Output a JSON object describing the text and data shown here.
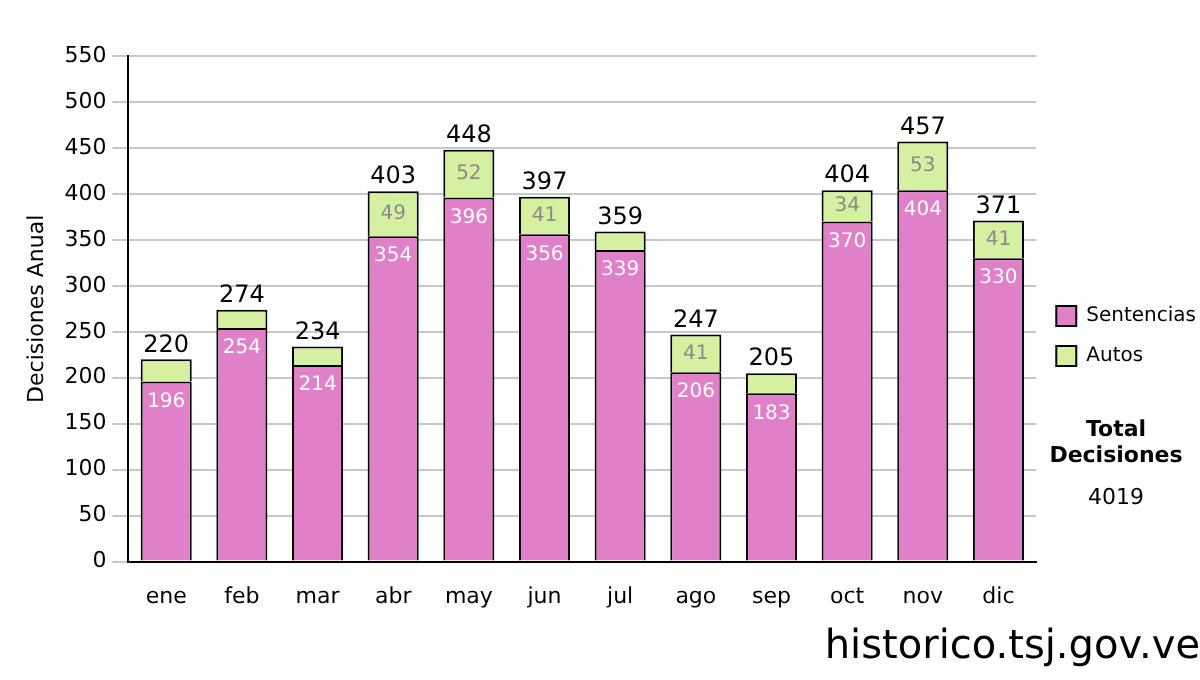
{
  "chart_data": {
    "type": "bar",
    "stacked": true,
    "ylabel": "Decisiones Anual",
    "categories": [
      "ene",
      "feb",
      "mar",
      "abr",
      "may",
      "jun",
      "jul",
      "ago",
      "sep",
      "oct",
      "nov",
      "dic"
    ],
    "series": [
      {
        "name": "Sentencias",
        "color": "#e080c8",
        "values": [
          196,
          254,
          214,
          354,
          396,
          356,
          339,
          206,
          183,
          370,
          404,
          330
        ],
        "value_labels": [
          "196",
          "254",
          "214",
          "354",
          "396",
          "356",
          "339",
          "206",
          "183",
          "370",
          "404",
          "330"
        ]
      },
      {
        "name": "Autos",
        "color": "#d4f0a0",
        "values": [
          24,
          20,
          20,
          49,
          52,
          41,
          20,
          41,
          22,
          34,
          53,
          41
        ],
        "value_labels": [
          null,
          null,
          null,
          "49",
          "52",
          "41",
          null,
          "41",
          null,
          "34",
          "53",
          "41"
        ]
      }
    ],
    "totals": [
      "220",
      "274",
      "234",
      "403",
      "448",
      "397",
      "359",
      "247",
      "205",
      "404",
      "457",
      "371"
    ],
    "ylim": [
      0,
      550
    ],
    "yticks": [
      0,
      50,
      100,
      150,
      200,
      250,
      300,
      350,
      400,
      450,
      500,
      550
    ],
    "grid": "y",
    "legend": "right",
    "annotations": [
      "Total Decisiones",
      "4019",
      "historico.tsj.gov.ve"
    ]
  }
}
